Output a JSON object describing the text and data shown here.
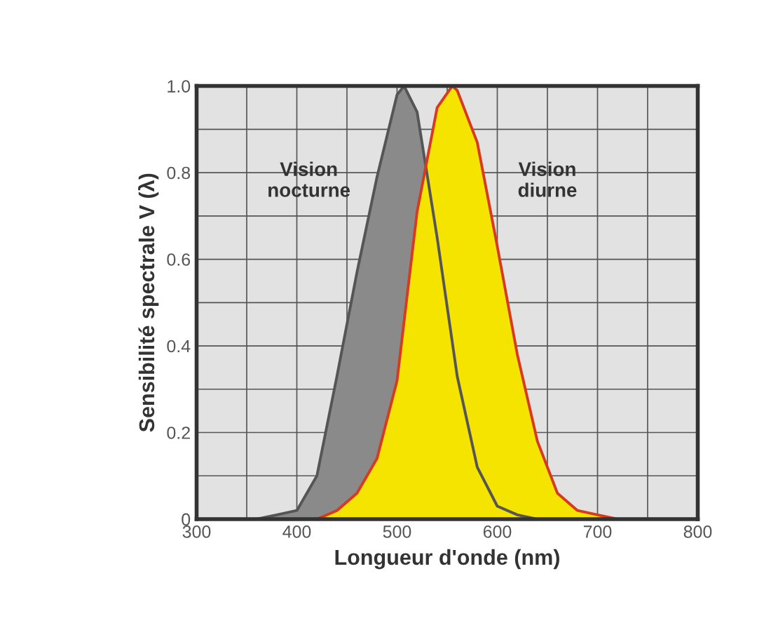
{
  "chart_data": {
    "type": "area",
    "xlabel": "Longueur d'onde (nm)",
    "ylabel": "Sensibilité spectrale V (λ)",
    "series": [
      {
        "name": "Vision\nnocturne",
        "color": "#8a8a8a",
        "x": [
          360,
          380,
          400,
          420,
          440,
          460,
          480,
          500,
          507,
          520,
          540,
          560,
          580,
          600,
          620,
          640,
          660,
          680
        ],
        "values": [
          0,
          0.01,
          0.02,
          0.1,
          0.33,
          0.57,
          0.79,
          0.98,
          1.0,
          0.94,
          0.65,
          0.33,
          0.12,
          0.03,
          0.01,
          0,
          0,
          0
        ]
      },
      {
        "name": "Vision\ndiurne",
        "color": "#f5e400",
        "x": [
          400,
          420,
          440,
          460,
          480,
          500,
          520,
          540,
          555,
          560,
          580,
          600,
          620,
          640,
          660,
          680,
          700,
          720,
          740,
          760
        ],
        "values": [
          0,
          0,
          0.02,
          0.06,
          0.14,
          0.32,
          0.71,
          0.95,
          1.0,
          0.99,
          0.87,
          0.63,
          0.38,
          0.18,
          0.06,
          0.02,
          0.01,
          0,
          0,
          0
        ]
      }
    ],
    "xlim": [
      300,
      800
    ],
    "ylim": [
      0,
      1.0
    ],
    "xticks": [
      300,
      {
        "value": 350,
        "label": null
      },
      400,
      {
        "value": 450,
        "label": null
      },
      500,
      {
        "value": 550,
        "label": null
      },
      600,
      {
        "value": 650,
        "label": null
      },
      700,
      {
        "value": 750,
        "label": null
      },
      800
    ],
    "yticks": [
      0,
      {
        "value": 0.1,
        "label": null
      },
      0.2,
      {
        "value": 0.3,
        "label": null
      },
      0.4,
      {
        "value": 0.5,
        "label": null
      },
      0.6,
      {
        "value": 0.7,
        "label": null
      },
      0.8,
      {
        "value": 0.9,
        "label": null
      },
      {
        "value": 1.0,
        "label": "1.0"
      }
    ],
    "grid": true,
    "legend": false
  }
}
